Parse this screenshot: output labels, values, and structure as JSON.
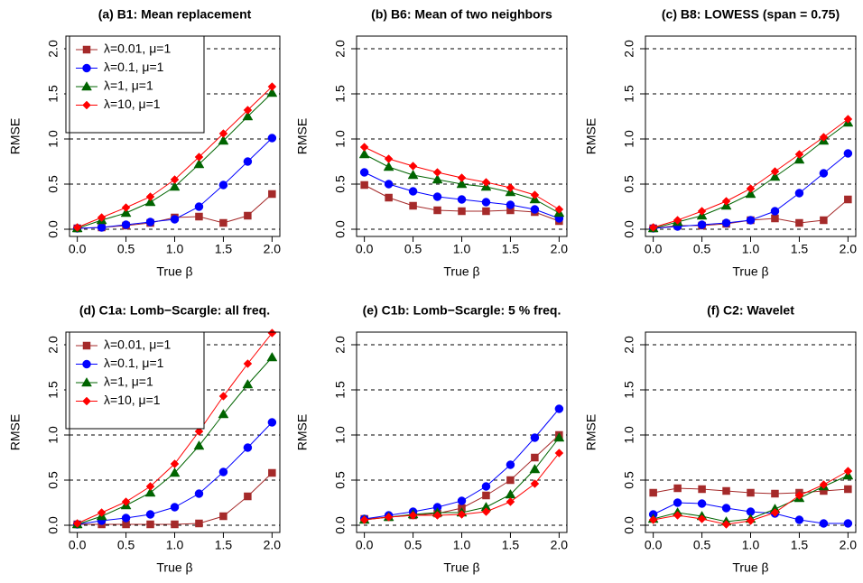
{
  "chart_data": [
    {
      "type": "line",
      "title": "(a) B1: Mean replacement",
      "xlabel": "True β",
      "ylabel": "RMSE",
      "legend": "topleft",
      "grid": true,
      "x": [
        0,
        0.25,
        0.5,
        0.75,
        1,
        1.25,
        1.5,
        1.75,
        2
      ],
      "xlim": [
        -0.08,
        2.08
      ],
      "ylim": [
        -0.08,
        2.14
      ],
      "xticks": [
        {
          "value": 0,
          "label": "0.0"
        },
        0.5,
        {
          "value": 1,
          "label": "1.0"
        },
        1.5,
        {
          "value": 2,
          "label": "2.0"
        }
      ],
      "yticks": [
        {
          "value": 0,
          "label": "0.0"
        },
        0.5,
        {
          "value": 1,
          "label": "1.0"
        },
        1.5,
        {
          "value": 2,
          "label": "2.0"
        }
      ],
      "series": [
        {
          "name": "λ=0.01, μ=1",
          "color": "#a52a2a",
          "marker": "square",
          "values": [
            0.01,
            0.02,
            0.04,
            0.07,
            0.13,
            0.14,
            0.07,
            0.15,
            0.39
          ]
        },
        {
          "name": "λ=0.1, μ=1",
          "color": "#0000ff",
          "marker": "circle",
          "values": [
            0.01,
            0.02,
            0.05,
            0.08,
            0.11,
            0.25,
            0.49,
            0.75,
            1.01
          ]
        },
        {
          "name": "λ=1, μ=1",
          "color": "#006400",
          "marker": "triangle",
          "values": [
            0.01,
            0.1,
            0.18,
            0.3,
            0.47,
            0.72,
            0.98,
            1.25,
            1.51
          ]
        },
        {
          "name": "λ=10, μ=1",
          "color": "#ff0000",
          "marker": "diamond",
          "values": [
            0.02,
            0.13,
            0.24,
            0.36,
            0.55,
            0.8,
            1.06,
            1.32,
            1.58
          ]
        }
      ]
    },
    {
      "type": "line",
      "title": "(b) B6: Mean of two neighbors",
      "xlabel": "True β",
      "ylabel": "RMSE",
      "grid": true,
      "x": [
        0,
        0.25,
        0.5,
        0.75,
        1,
        1.25,
        1.5,
        1.75,
        2
      ],
      "xlim": [
        -0.08,
        2.08
      ],
      "ylim": [
        -0.08,
        2.14
      ],
      "xticks": [
        {
          "value": 0,
          "label": "0.0"
        },
        0.5,
        {
          "value": 1,
          "label": "1.0"
        },
        1.5,
        {
          "value": 2,
          "label": "2.0"
        }
      ],
      "yticks": [
        {
          "value": 0,
          "label": "0.0"
        },
        0.5,
        {
          "value": 1,
          "label": "1.0"
        },
        1.5,
        {
          "value": 2,
          "label": "2.0"
        }
      ],
      "series": [
        {
          "color": "#a52a2a",
          "marker": "square",
          "values": [
            0.49,
            0.35,
            0.26,
            0.21,
            0.2,
            0.2,
            0.21,
            0.19,
            0.09
          ]
        },
        {
          "color": "#0000ff",
          "marker": "circle",
          "values": [
            0.63,
            0.5,
            0.42,
            0.36,
            0.33,
            0.3,
            0.27,
            0.22,
            0.12
          ]
        },
        {
          "color": "#006400",
          "marker": "triangle",
          "values": [
            0.83,
            0.69,
            0.6,
            0.55,
            0.5,
            0.47,
            0.41,
            0.33,
            0.18
          ]
        },
        {
          "color": "#ff0000",
          "marker": "diamond",
          "values": [
            0.91,
            0.78,
            0.7,
            0.63,
            0.57,
            0.52,
            0.46,
            0.38,
            0.22
          ]
        }
      ]
    },
    {
      "type": "line",
      "title": "(c) B8: LOWESS (span = 0.75)",
      "xlabel": "True β",
      "ylabel": "RMSE",
      "grid": true,
      "x": [
        0,
        0.25,
        0.5,
        0.75,
        1,
        1.25,
        1.5,
        1.75,
        2
      ],
      "xlim": [
        -0.08,
        2.08
      ],
      "ylim": [
        -0.08,
        2.14
      ],
      "xticks": [
        {
          "value": 0,
          "label": "0.0"
        },
        0.5,
        {
          "value": 1,
          "label": "1.0"
        },
        1.5,
        {
          "value": 2,
          "label": "2.0"
        }
      ],
      "yticks": [
        {
          "value": 0,
          "label": "0.0"
        },
        0.5,
        {
          "value": 1,
          "label": "1.0"
        },
        1.5,
        {
          "value": 2,
          "label": "2.0"
        }
      ],
      "series": [
        {
          "color": "#a52a2a",
          "marker": "square",
          "values": [
            0.01,
            0.04,
            0.04,
            0.06,
            0.1,
            0.12,
            0.07,
            0.1,
            0.33
          ]
        },
        {
          "color": "#0000ff",
          "marker": "circle",
          "values": [
            0.01,
            0.03,
            0.05,
            0.07,
            0.1,
            0.2,
            0.4,
            0.62,
            0.84
          ]
        },
        {
          "color": "#006400",
          "marker": "triangle",
          "values": [
            0.01,
            0.08,
            0.15,
            0.26,
            0.39,
            0.58,
            0.77,
            0.98,
            1.18
          ]
        },
        {
          "color": "#ff0000",
          "marker": "diamond",
          "values": [
            0.02,
            0.1,
            0.2,
            0.31,
            0.45,
            0.64,
            0.83,
            1.02,
            1.22
          ]
        }
      ]
    },
    {
      "type": "line",
      "title": "(d) C1a: Lomb−Scargle: all freq.",
      "xlabel": "True β",
      "ylabel": "RMSE",
      "legend": "topleft",
      "grid": true,
      "x": [
        0,
        0.25,
        0.5,
        0.75,
        1,
        1.25,
        1.5,
        1.75,
        2
      ],
      "xlim": [
        -0.08,
        2.08
      ],
      "ylim": [
        -0.08,
        2.14
      ],
      "xticks": [
        {
          "value": 0,
          "label": "0.0"
        },
        0.5,
        {
          "value": 1,
          "label": "1.0"
        },
        1.5,
        {
          "value": 2,
          "label": "2.0"
        }
      ],
      "yticks": [
        {
          "value": 0,
          "label": "0.0"
        },
        0.5,
        {
          "value": 1,
          "label": "1.0"
        },
        1.5,
        {
          "value": 2,
          "label": "2.0"
        }
      ],
      "series": [
        {
          "name": "λ=0.01, μ=1",
          "color": "#a52a2a",
          "marker": "square",
          "values": [
            0.01,
            0.01,
            0.01,
            0.01,
            0.01,
            0.02,
            0.1,
            0.32,
            0.58
          ]
        },
        {
          "name": "λ=0.1, μ=1",
          "color": "#0000ff",
          "marker": "circle",
          "values": [
            0.01,
            0.05,
            0.08,
            0.12,
            0.2,
            0.35,
            0.59,
            0.86,
            1.14
          ]
        },
        {
          "name": "λ=1, μ=1",
          "color": "#006400",
          "marker": "triangle",
          "values": [
            0.01,
            0.1,
            0.22,
            0.36,
            0.58,
            0.88,
            1.23,
            1.56,
            1.86
          ]
        },
        {
          "name": "λ=10, μ=1",
          "color": "#ff0000",
          "marker": "diamond",
          "values": [
            0.02,
            0.14,
            0.26,
            0.43,
            0.68,
            1.04,
            1.43,
            1.79,
            2.13
          ]
        }
      ]
    },
    {
      "type": "line",
      "title": "(e) C1b: Lomb−Scargle: 5 % freq.",
      "xlabel": "True β",
      "ylabel": "RMSE",
      "grid": true,
      "x": [
        0,
        0.25,
        0.5,
        0.75,
        1,
        1.25,
        1.5,
        1.75,
        2
      ],
      "xlim": [
        -0.08,
        2.08
      ],
      "ylim": [
        -0.08,
        2.14
      ],
      "xticks": [
        {
          "value": 0,
          "label": "0.0"
        },
        0.5,
        {
          "value": 1,
          "label": "1.0"
        },
        1.5,
        {
          "value": 2,
          "label": "2.0"
        }
      ],
      "yticks": [
        {
          "value": 0,
          "label": "0.0"
        },
        0.5,
        {
          "value": 1,
          "label": "1.0"
        },
        1.5,
        {
          "value": 2,
          "label": "2.0"
        }
      ],
      "series": [
        {
          "color": "#a52a2a",
          "marker": "square",
          "values": [
            0.07,
            0.09,
            0.11,
            0.13,
            0.19,
            0.33,
            0.5,
            0.75,
            1.0
          ]
        },
        {
          "color": "#0000ff",
          "marker": "circle",
          "values": [
            0.07,
            0.11,
            0.15,
            0.2,
            0.27,
            0.43,
            0.67,
            0.97,
            1.29
          ]
        },
        {
          "color": "#006400",
          "marker": "triangle",
          "values": [
            0.06,
            0.09,
            0.12,
            0.14,
            0.14,
            0.2,
            0.34,
            0.62,
            0.97
          ]
        },
        {
          "color": "#ff0000",
          "marker": "diamond",
          "values": [
            0.06,
            0.09,
            0.11,
            0.11,
            0.12,
            0.15,
            0.26,
            0.46,
            0.8
          ]
        }
      ]
    },
    {
      "type": "line",
      "title": "(f) C2: Wavelet",
      "xlabel": "True β",
      "ylabel": "RMSE",
      "grid": true,
      "x": [
        0,
        0.25,
        0.5,
        0.75,
        1,
        1.25,
        1.5,
        1.75,
        2
      ],
      "xlim": [
        -0.08,
        2.08
      ],
      "ylim": [
        -0.08,
        2.14
      ],
      "xticks": [
        {
          "value": 0,
          "label": "0.0"
        },
        0.5,
        {
          "value": 1,
          "label": "1.0"
        },
        1.5,
        {
          "value": 2,
          "label": "2.0"
        }
      ],
      "yticks": [
        {
          "value": 0,
          "label": "0.0"
        },
        0.5,
        {
          "value": 1,
          "label": "1.0"
        },
        1.5,
        {
          "value": 2,
          "label": "2.0"
        }
      ],
      "series": [
        {
          "color": "#a52a2a",
          "marker": "square",
          "values": [
            0.36,
            0.41,
            0.4,
            0.38,
            0.36,
            0.35,
            0.36,
            0.38,
            0.4
          ]
        },
        {
          "color": "#0000ff",
          "marker": "circle",
          "values": [
            0.12,
            0.25,
            0.24,
            0.19,
            0.15,
            0.13,
            0.06,
            0.02,
            0.02
          ]
        },
        {
          "color": "#006400",
          "marker": "triangle",
          "values": [
            0.07,
            0.14,
            0.1,
            0.04,
            0.07,
            0.18,
            0.3,
            0.43,
            0.55
          ]
        },
        {
          "color": "#ff0000",
          "marker": "diamond",
          "values": [
            0.06,
            0.11,
            0.07,
            0.01,
            0.05,
            0.14,
            0.33,
            0.45,
            0.6
          ]
        }
      ]
    }
  ]
}
